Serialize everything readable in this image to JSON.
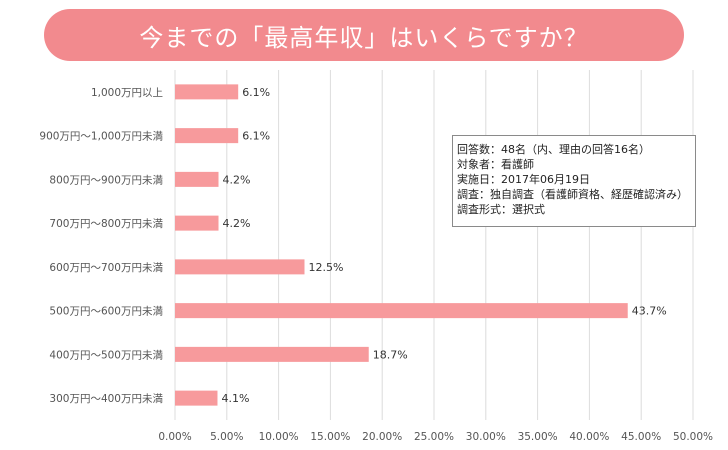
{
  "title": "今までの「最高年収」はいくらですか？",
  "info_lines": [
    "回答数：48名（内、理由の回答16名）",
    "対象者：看護師",
    "実施日：2017年06月19日",
    "調査：独自調査（看護師資格、経歴確認済み）",
    "調査形式：選択式"
  ],
  "colors": {
    "bar": "#f79a9c",
    "title_bg": "#f28a8e",
    "grid": "#dcdcdc"
  },
  "chart_data": {
    "type": "bar",
    "orientation": "horizontal",
    "categories": [
      "1,000万円以上",
      "900万円～1,000万円未満",
      "800万円～900万円未満",
      "700万円～800万円未満",
      "600万円～700万円未満",
      "500万円～600万円未満",
      "400万円～500万円未満",
      "300万円～400万円未満"
    ],
    "values": [
      6.1,
      6.1,
      4.2,
      4.2,
      12.5,
      43.7,
      18.7,
      4.1
    ],
    "value_labels": [
      "6.1%",
      "6.1%",
      "4.2%",
      "4.2%",
      "12.5%",
      "43.7%",
      "18.7%",
      "4.1%"
    ],
    "xlim": [
      0,
      50
    ],
    "xticks": [
      "0.00%",
      "5.00%",
      "10.00%",
      "15.00%",
      "20.00%",
      "25.00%",
      "30.00%",
      "35.00%",
      "40.00%",
      "45.00%",
      "50.00%"
    ],
    "grid": true
  }
}
